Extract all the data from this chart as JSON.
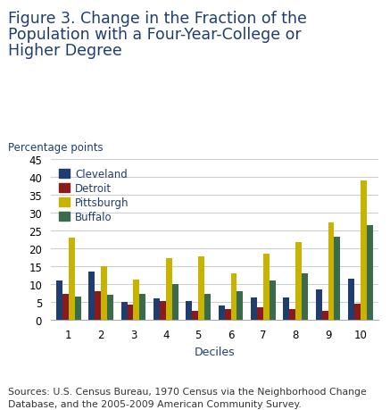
{
  "title_line1": "Figure 3. Change in the Fraction of the",
  "title_line2": "Population with a Four-Year-College or",
  "title_line3": "Higher Degree",
  "ylabel": "Percentage points",
  "xlabel": "Deciles",
  "ylim": [
    0.0,
    45.0
  ],
  "yticks": [
    0.0,
    5.0,
    10.0,
    15.0,
    20.0,
    25.0,
    30.0,
    35.0,
    40.0,
    45.0
  ],
  "deciles": [
    1,
    2,
    3,
    4,
    5,
    6,
    7,
    8,
    9,
    10
  ],
  "series": {
    "Cleveland": [
      11.0,
      13.5,
      5.0,
      6.0,
      5.2,
      4.0,
      6.2,
      6.2,
      8.5,
      11.5
    ],
    "Detroit": [
      7.2,
      8.0,
      4.2,
      5.2,
      2.5,
      3.0,
      3.5,
      3.0,
      2.5,
      4.5
    ],
    "Pittsburgh": [
      23.0,
      15.0,
      11.3,
      17.2,
      17.8,
      13.0,
      18.5,
      21.8,
      27.3,
      39.0
    ],
    "Buffalo": [
      6.5,
      7.0,
      7.2,
      10.0,
      7.2,
      8.0,
      11.0,
      13.0,
      23.3,
      26.5
    ]
  },
  "colors": {
    "Cleveland": "#1f3d6e",
    "Detroit": "#8b1a1a",
    "Pittsburgh": "#c8b400",
    "Buffalo": "#3a6b4a"
  },
  "legend_order": [
    "Cleveland",
    "Detroit",
    "Pittsburgh",
    "Buffalo"
  ],
  "source_text": "Sources: U.S. Census Bureau, 1970 Census via the Neighborhood Change\nDatabase, and the 2005-2009 American Community Survey.",
  "title_color": "#1f3d6e",
  "axis_label_color": "#1f3d6e",
  "source_color": "#333333",
  "bar_width": 0.19,
  "title_fontsize": 12.5,
  "ylabel_fontsize": 8.5,
  "xlabel_fontsize": 9,
  "tick_fontsize": 8.5,
  "legend_fontsize": 8.5,
  "source_fontsize": 7.8
}
